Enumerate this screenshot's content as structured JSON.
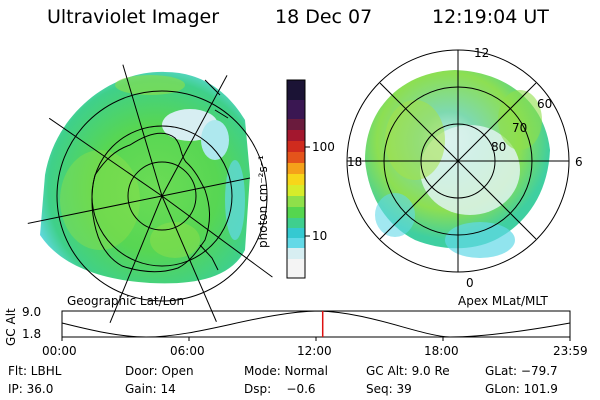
{
  "header": {
    "instrument": "Ultraviolet Imager",
    "date": "18 Dec 07",
    "time": "12:19:04 UT"
  },
  "colorbar": {
    "label": "photon cm⁻²s⁻¹",
    "ticks": [
      "100",
      "10"
    ],
    "colors": [
      "#f4f4f4",
      "#d7eef2",
      "#63d9e7",
      "#35c9d1",
      "#3fcf8e",
      "#55d64f",
      "#8fe04a",
      "#d7ec2b",
      "#f7d61a",
      "#f5a11a",
      "#e4541b",
      "#cf2b1e",
      "#a3172e",
      "#6a1b3d",
      "#3a1752",
      "#1b1335"
    ]
  },
  "left_map": {
    "caption": "Geographic Lat/Lon"
  },
  "right_map": {
    "caption": "Apex MLat/MLT",
    "mlt_labels": {
      "top": "12",
      "left": "18",
      "right": "6",
      "bottom": "0"
    },
    "lat_labels": [
      "60",
      "70",
      "80"
    ]
  },
  "gc_plot": {
    "ylabel": "GC Alt",
    "ymax": "9.0",
    "ymin": "1.8",
    "xticks": [
      "00:00",
      "06:00",
      "12:00",
      "18:00",
      "23:59"
    ],
    "current_time_fraction": 0.5132
  },
  "info": {
    "row1": {
      "filter": "Flt: LBHL",
      "door": "Door: Open",
      "mode": "Mode: Normal",
      "gc_alt": "GC Alt: 9.0 Re",
      "glat": "GLat: −79.7"
    },
    "row2": {
      "ip": "IP: 36.0",
      "gain": "Gain: 14",
      "dsp": "Dsp:    −0.6",
      "seq": "Seq: 39",
      "glon": "GLon: 101.9"
    }
  }
}
